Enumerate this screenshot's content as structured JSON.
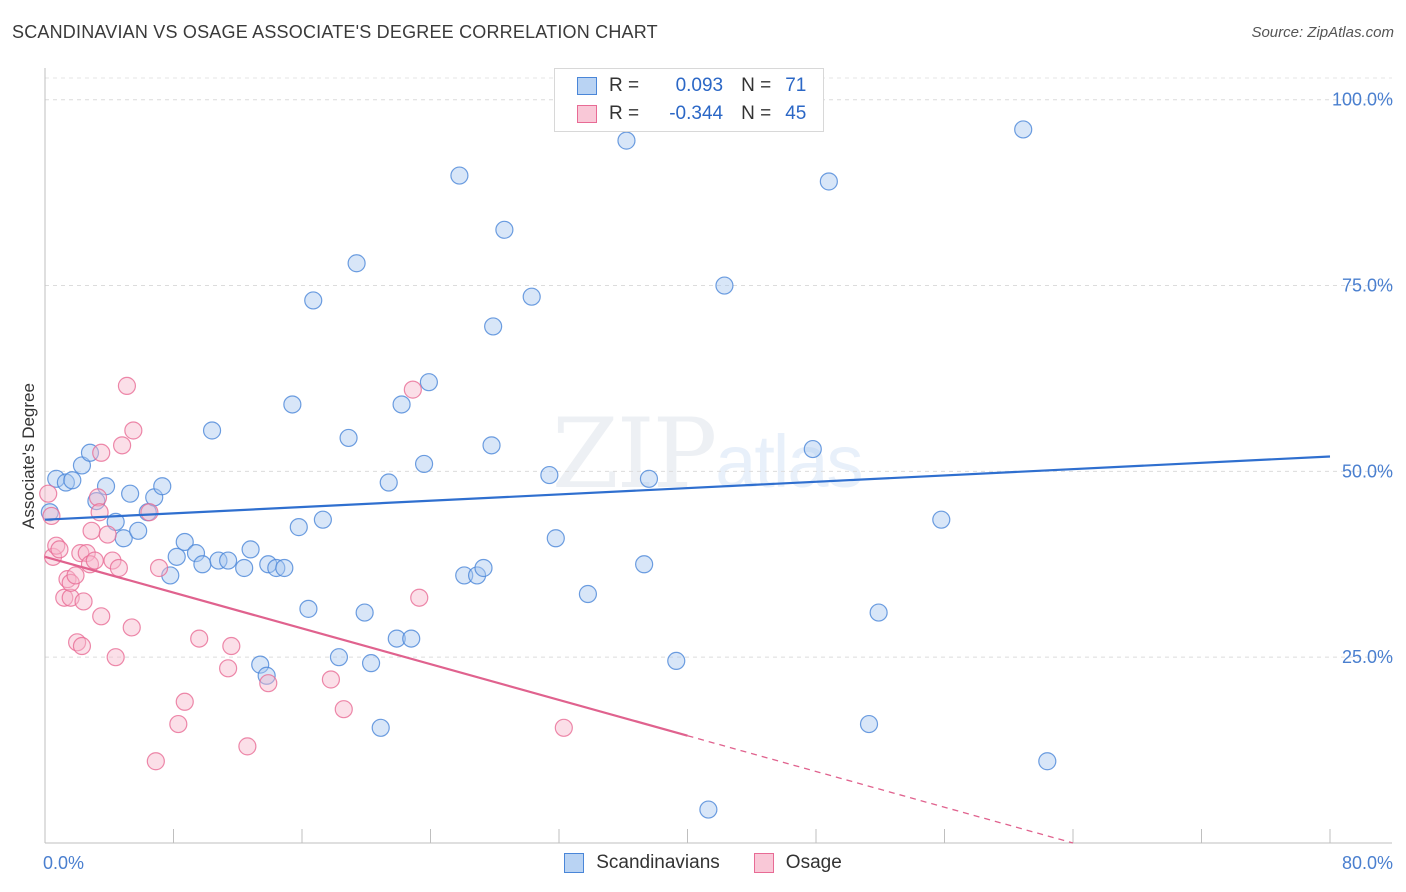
{
  "title": "SCANDINAVIAN VS OSAGE ASSOCIATE'S DEGREE CORRELATION CHART",
  "source": "Source: ZipAtlas.com",
  "watermark": {
    "zip": "ZIP",
    "atlas": "atlas"
  },
  "legend": {
    "r_label": "R =",
    "n_label": "N =",
    "series": [
      {
        "name": "Scandinavians",
        "r": "0.093",
        "n": "71"
      },
      {
        "name": "Osage",
        "r": "-0.344",
        "n": "45"
      }
    ]
  },
  "colors": {
    "blue": "#4a86d8",
    "blue_fill": "#a9c8f0",
    "pink": "#e86b95",
    "pink_fill": "#f6b8cc"
  },
  "chart_data": {
    "type": "scatter",
    "title": "SCANDINAVIAN VS OSAGE ASSOCIATE'S DEGREE CORRELATION CHART",
    "xlabel": "",
    "ylabel": "Associate's Degree",
    "xlim": [
      0,
      80
    ],
    "ylim": [
      0,
      104
    ],
    "x_tick_labels": [
      {
        "value": 0,
        "label": "0.0%"
      },
      {
        "value": 80,
        "label": "80.0%"
      }
    ],
    "y_tick_labels": [
      {
        "value": 25,
        "label": "25.0%"
      },
      {
        "value": 50,
        "label": "50.0%"
      },
      {
        "value": 75,
        "label": "75.0%"
      },
      {
        "value": 100,
        "label": "100.0%"
      }
    ],
    "series": [
      {
        "name": "Scandinavians",
        "trend": {
          "x": [
            0,
            80
          ],
          "y": [
            43.5,
            52.0
          ],
          "dashed_from": null
        },
        "points": [
          [
            0.3,
            44.5
          ],
          [
            0.7,
            49
          ],
          [
            1.3,
            48.5
          ],
          [
            1.7,
            48.8
          ],
          [
            2.3,
            50.8
          ],
          [
            2.8,
            52.5
          ],
          [
            3.2,
            46
          ],
          [
            3.8,
            48
          ],
          [
            4.4,
            43.2
          ],
          [
            4.9,
            41
          ],
          [
            5.3,
            47
          ],
          [
            5.8,
            42
          ],
          [
            6.4,
            44.5
          ],
          [
            6.8,
            46.5
          ],
          [
            7.3,
            48
          ],
          [
            7.8,
            36
          ],
          [
            8.2,
            38.5
          ],
          [
            8.7,
            40.5
          ],
          [
            9.4,
            39
          ],
          [
            9.8,
            37.5
          ],
          [
            10.4,
            55.5
          ],
          [
            10.8,
            38
          ],
          [
            11.4,
            38
          ],
          [
            12.4,
            37
          ],
          [
            12.8,
            39.5
          ],
          [
            13.4,
            24
          ],
          [
            13.8,
            22.5
          ],
          [
            13.9,
            37.5
          ],
          [
            14.4,
            37
          ],
          [
            14.9,
            37
          ],
          [
            15.4,
            59
          ],
          [
            15.8,
            42.5
          ],
          [
            16.4,
            31.5
          ],
          [
            16.7,
            73
          ],
          [
            17.3,
            43.5
          ],
          [
            18.3,
            25
          ],
          [
            18.9,
            54.5
          ],
          [
            19.4,
            78
          ],
          [
            19.9,
            31
          ],
          [
            20.3,
            24.2
          ],
          [
            20.9,
            15.5
          ],
          [
            21.4,
            48.5
          ],
          [
            21.9,
            27.5
          ],
          [
            22.2,
            59
          ],
          [
            22.8,
            27.5
          ],
          [
            23.6,
            51
          ],
          [
            23.9,
            62
          ],
          [
            25.8,
            89.8
          ],
          [
            26.1,
            36
          ],
          [
            26.9,
            36
          ],
          [
            27.3,
            37
          ],
          [
            27.8,
            53.5
          ],
          [
            27.9,
            69.5
          ],
          [
            28.6,
            82.5
          ],
          [
            30.3,
            73.5
          ],
          [
            31.4,
            49.5
          ],
          [
            31.8,
            41
          ],
          [
            33.8,
            33.5
          ],
          [
            36.2,
            94.5
          ],
          [
            37.3,
            37.5
          ],
          [
            37.6,
            49
          ],
          [
            39.3,
            24.5
          ],
          [
            41.3,
            4.5
          ],
          [
            42.3,
            75
          ],
          [
            47.8,
            53
          ],
          [
            48.8,
            89
          ],
          [
            51.3,
            16
          ],
          [
            51.9,
            31
          ],
          [
            55.8,
            43.5
          ],
          [
            60.9,
            96
          ],
          [
            62.4,
            11
          ]
        ]
      },
      {
        "name": "Osage",
        "trend": {
          "x": [
            0,
            64
          ],
          "y": [
            38.5,
            0
          ],
          "dashed_from": 40
        },
        "points": [
          [
            0.2,
            47
          ],
          [
            0.4,
            44
          ],
          [
            0.5,
            38.5
          ],
          [
            0.7,
            40
          ],
          [
            0.9,
            39.5
          ],
          [
            1.2,
            33
          ],
          [
            1.4,
            35.5
          ],
          [
            1.6,
            33
          ],
          [
            1.6,
            35
          ],
          [
            1.9,
            36
          ],
          [
            2.0,
            27
          ],
          [
            2.2,
            39
          ],
          [
            2.3,
            26.5
          ],
          [
            2.4,
            32.5
          ],
          [
            2.6,
            39
          ],
          [
            2.8,
            37.5
          ],
          [
            2.9,
            42
          ],
          [
            3.1,
            38
          ],
          [
            3.3,
            46.5
          ],
          [
            3.4,
            44.5
          ],
          [
            3.5,
            52.5
          ],
          [
            3.5,
            30.5
          ],
          [
            3.9,
            41.5
          ],
          [
            4.2,
            38
          ],
          [
            4.4,
            25
          ],
          [
            4.6,
            37
          ],
          [
            4.8,
            53.5
          ],
          [
            5.1,
            61.5
          ],
          [
            5.4,
            29
          ],
          [
            5.5,
            55.5
          ],
          [
            6.5,
            44.5
          ],
          [
            6.9,
            11
          ],
          [
            7.1,
            37
          ],
          [
            8.3,
            16
          ],
          [
            8.7,
            19
          ],
          [
            9.6,
            27.5
          ],
          [
            11.4,
            23.5
          ],
          [
            11.6,
            26.5
          ],
          [
            12.6,
            13
          ],
          [
            13.9,
            21.5
          ],
          [
            17.8,
            22
          ],
          [
            18.6,
            18
          ],
          [
            22.9,
            61
          ],
          [
            23.3,
            33
          ],
          [
            32.3,
            15.5
          ]
        ]
      }
    ]
  }
}
